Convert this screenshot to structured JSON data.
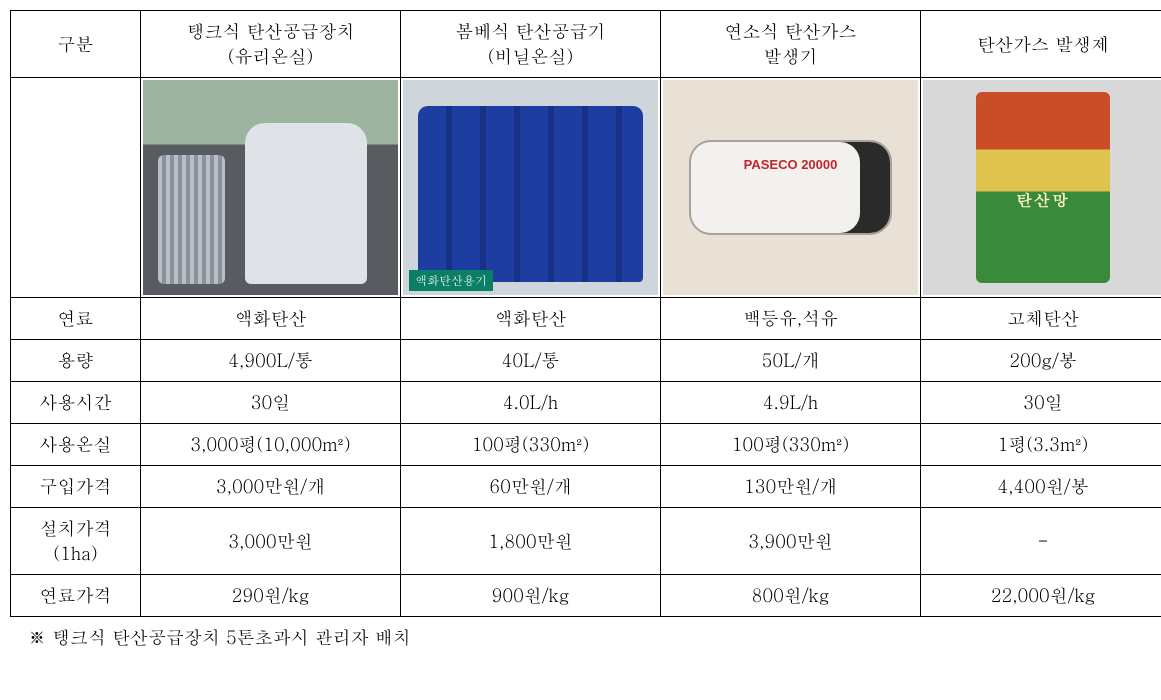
{
  "headers": {
    "rowLabel": "구분",
    "col1": "탱크식 탄산공급장치\n(유리온실)",
    "col2": "봄베식 탄산공급기\n(비닐온실)",
    "col3": "연소식 탄산가스\n발생기",
    "col4": "탄산가스 발생제"
  },
  "imageAlts": {
    "col1": "탱크식 탄산공급장치 사진",
    "col2": "봄베식 액화탄산 용기 사진",
    "col3": "연소식 탄산가스 발생기 사진",
    "col4": "탄산가스 발생제 포장 사진"
  },
  "rows": {
    "fuel": {
      "label": "연료",
      "c1": "액화탄산",
      "c2": "액화탄산",
      "c3": "백등유,석유",
      "c4": "고체탄산"
    },
    "capacity": {
      "label": "용량",
      "c1": "4,900L/통",
      "c2": "40L/통",
      "c3": "50L/개",
      "c4": "200g/봉"
    },
    "usetime": {
      "label": "사용시간",
      "c1": "30일",
      "c2": "4.0L/h",
      "c3": "4.9L/h",
      "c4": "30일"
    },
    "area": {
      "label": "사용온실",
      "c1": "3,000평(10,000m²)",
      "c2": "100평(330m²)",
      "c3": "100평(330m²)",
      "c4": "1평(3.3m²)"
    },
    "price": {
      "label": "구입가격",
      "c1": "3,000만원/개",
      "c2": "60만원/개",
      "c3": "130만원/개",
      "c4": "4,400원/봉"
    },
    "install": {
      "label": "설치가격\n(1ha)",
      "c1": "3,000만원",
      "c2": "1,800만원",
      "c3": "3,900만원",
      "c4": "-"
    },
    "fuelcost": {
      "label": "연료가격",
      "c1": "290원/kg",
      "c2": "900원/kg",
      "c3": "800원/kg",
      "c4": "22,000원/kg"
    }
  },
  "footnote": "※ 탱크식 탄산공급장치 5톤초과시 관리자 배치",
  "style": {
    "borderColor": "#000000",
    "background": "#ffffff",
    "fontSizePx": 18,
    "rowHeightPx": 38
  }
}
